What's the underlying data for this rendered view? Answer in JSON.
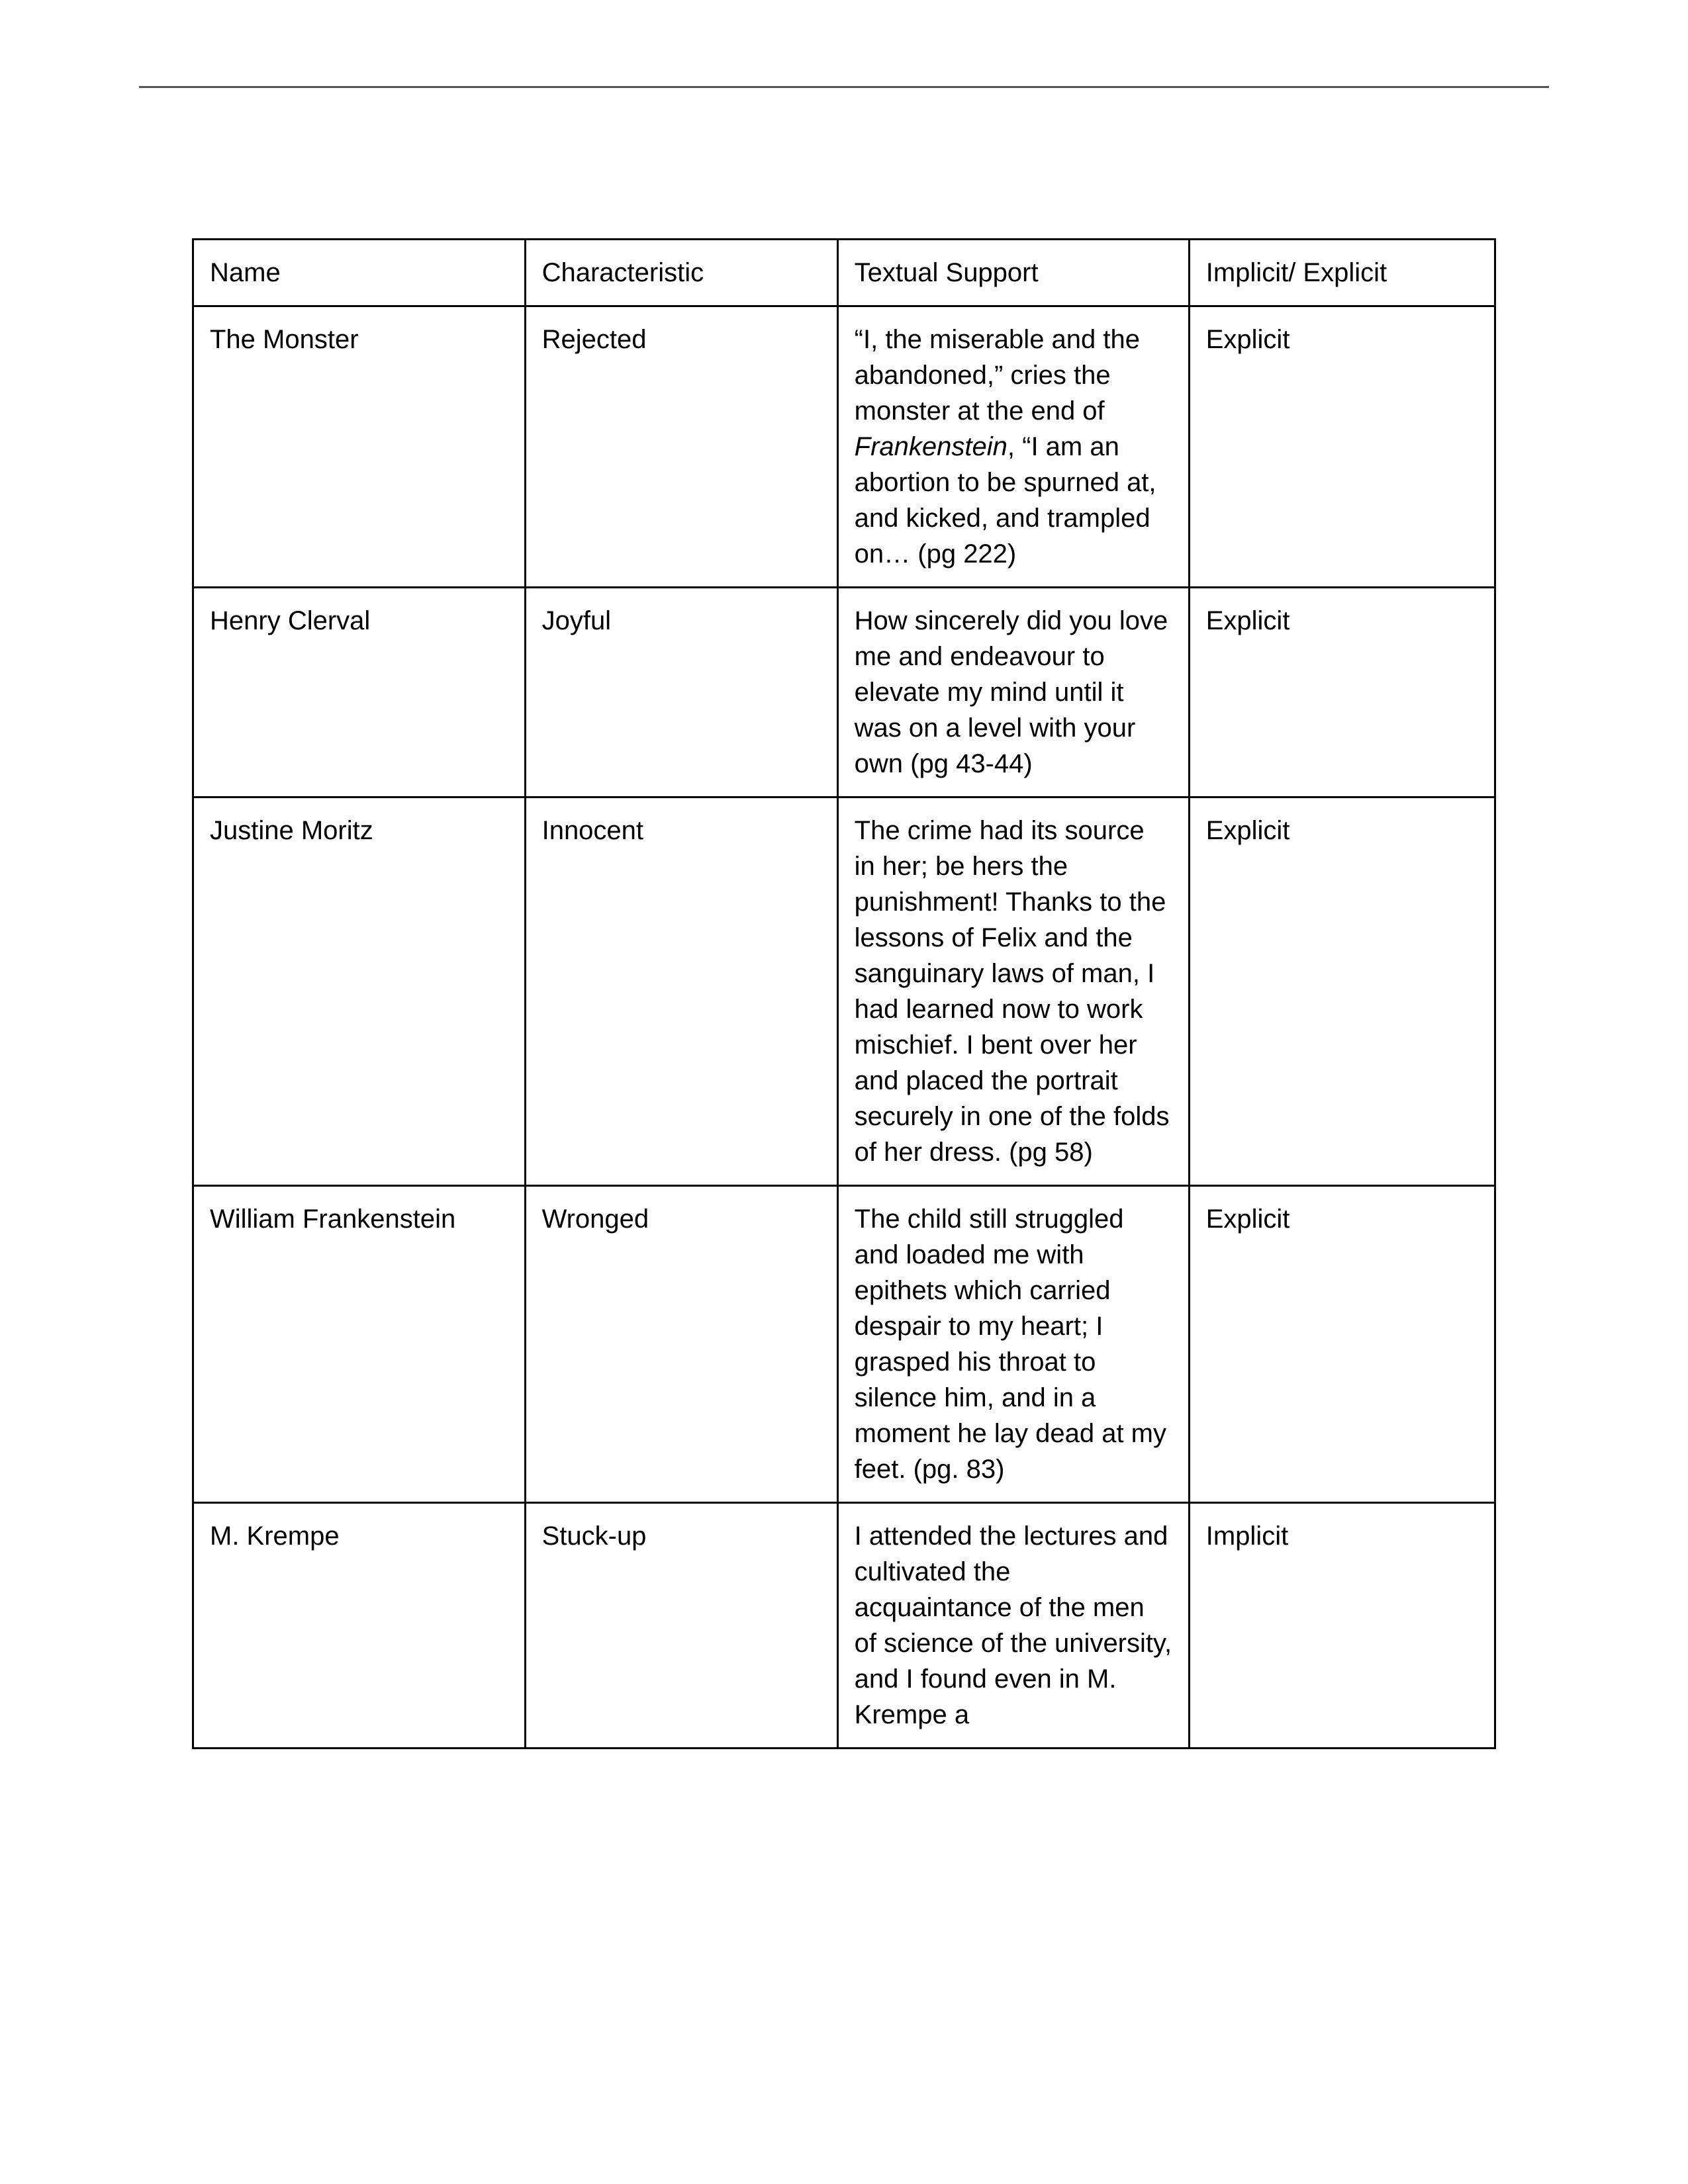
{
  "page": {
    "background_color": "#ffffff",
    "rule_color": "#555555",
    "border_color": "#000000",
    "text_color": "#000000",
    "font_family": "Arial",
    "header_fontsize_pt": 14,
    "cell_fontsize_pt": 14
  },
  "table": {
    "columns": [
      "Name",
      "Characteristic",
      "Textual Support",
      "Implicit/ Explicit"
    ],
    "column_widths_pct": [
      25.5,
      24.0,
      27.0,
      23.5
    ],
    "rows": [
      {
        "name": "The Monster",
        "characteristic": "Rejected",
        "support_pre": "“I, the miserable and the abandoned,” cries the monster at the end of ",
        "support_italic": "Frankenstein",
        "support_post": ", “I am an abortion to be spurned at, and kicked, and trampled on… (pg 222)",
        "implicit_explicit": "Explicit"
      },
      {
        "name": "Henry Clerval",
        "characteristic": "Joyful",
        "support_pre": "How sincerely did you love me and endeavour to elevate my mind until it was on a level with your own (pg 43-44)",
        "support_italic": "",
        "support_post": "",
        "implicit_explicit": "Explicit"
      },
      {
        "name": "Justine Moritz",
        "characteristic": "Innocent",
        "support_pre": "The crime had its source in her; be hers the punishment! Thanks to the lessons of Felix and the sanguinary laws of man, I had learned now to work mischief. I bent over her and placed the portrait securely in one of the folds of her dress. (pg 58)",
        "support_italic": "",
        "support_post": "",
        "implicit_explicit": "Explicit"
      },
      {
        "name": "William Frankenstein",
        "characteristic": "Wronged",
        "support_pre": "The child still struggled and loaded me with epithets which carried despair to my heart; I grasped his throat to silence him, and in a moment he lay dead at my feet. (pg. 83)",
        "support_italic": "",
        "support_post": "",
        "implicit_explicit": "Explicit"
      },
      {
        "name": "M. Krempe",
        "characteristic": "Stuck-up",
        "support_pre": "I attended the lectures and cultivated the acquaintance of the men of science of the university, and I found even in M. Krempe a",
        "support_italic": "",
        "support_post": "",
        "implicit_explicit": "Implicit"
      }
    ]
  }
}
